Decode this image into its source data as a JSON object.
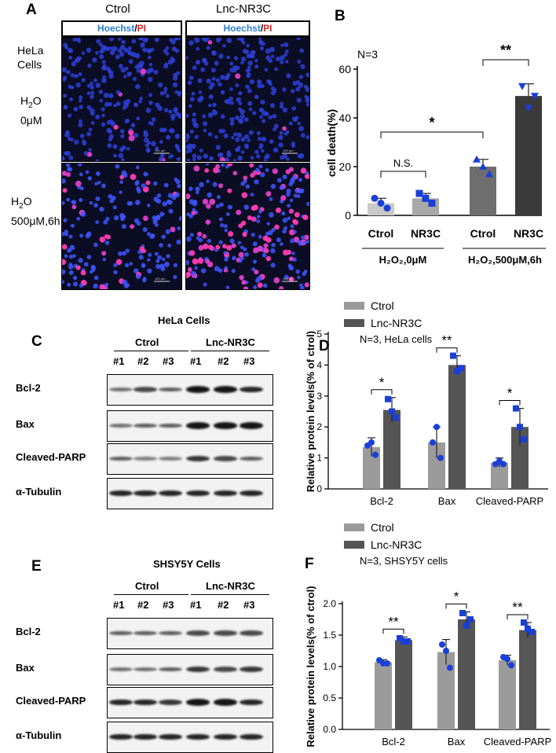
{
  "panelA": {
    "letter": "A",
    "col_ctrl": "Ctrol",
    "col_lnc": "Lnc-NR3C",
    "stain_hoechst": "Hoechst",
    "stain_sep": "/",
    "stain_pi": "PI",
    "row1_cells": "HeLa\nCells",
    "row1_h2o2": "H",
    "row1_sub": "2",
    "row1_o": "O",
    "row1_dose": "0μM",
    "row2_h2o2": "H",
    "row2_sub": "2",
    "row2_o": "O",
    "row2_dose": "500μM,6h",
    "scalebar": "100 μm"
  },
  "panelB": {
    "letter": "B",
    "n_label": "N=3",
    "ylabel": "cell death(%)",
    "yticks": [
      "0",
      "20",
      "40",
      "60"
    ],
    "xcats": [
      "Ctrol",
      "NR3C",
      "Ctrol",
      "NR3C"
    ],
    "group1": "H₂O₂,0μM",
    "group2": "H₂O₂,500μM,6h",
    "sig_ns": "N.S.",
    "sig_1": "*",
    "sig_2": "**"
  },
  "panelC": {
    "letter": "C",
    "title": "HeLa Cells",
    "ctrl": "Ctrol",
    "lnc": "Lnc-NR3C",
    "lanes": [
      "#1",
      "#2",
      "#3",
      "#1",
      "#2",
      "#3"
    ],
    "rows": [
      "Bcl-2",
      "Bax",
      "Cleaved-PARP",
      "α-Tubulin"
    ]
  },
  "panelD": {
    "letter": "D",
    "legend_ctrl": "Ctrol",
    "legend_lnc": "Lnc-NR3C",
    "n_label": "N=3, HeLa cells",
    "ylabel": "Relative protein levels(% of ctrol)",
    "yticks": [
      "0",
      "1",
      "2",
      "3",
      "4",
      "5"
    ],
    "cats": [
      "Bcl-2",
      "Bax",
      "Cleaved-PARP"
    ],
    "sig": [
      "*",
      "**",
      "*"
    ]
  },
  "panelE": {
    "letter": "E",
    "title": "SHSY5Y Cells",
    "ctrl": "Ctrol",
    "lnc": "Lnc-NR3C",
    "lanes": [
      "#1",
      "#2",
      "#3",
      "#1",
      "#2",
      "#3"
    ],
    "rows": [
      "Bcl-2",
      "Bax",
      "Cleaved-PARP",
      "α-Tubulin"
    ]
  },
  "panelF": {
    "letter": "F",
    "legend_ctrl": "Ctrol",
    "legend_lnc": "Lnc-NR3C",
    "n_label": "N=3, SHSY5Y cells",
    "ylabel": "Relative protein levels(% of ctrol)",
    "yticks": [
      "0.0",
      "0.5",
      "1.0",
      "1.5",
      "2.0"
    ],
    "cats": [
      "Bcl-2",
      "Bax",
      "Cleaved-PARP"
    ],
    "sig": [
      "**",
      "*",
      "**"
    ]
  },
  "chart_data": [
    {
      "type": "bar",
      "panel": "B",
      "ylabel": "cell death(%)",
      "ylim": [
        0,
        60
      ],
      "categories": [
        "Ctrol",
        "NR3C",
        "Ctrol",
        "NR3C"
      ],
      "values": [
        5,
        7,
        20,
        49
      ],
      "errors": [
        2,
        2,
        3,
        5
      ],
      "points": [
        [
          7,
          3,
          5
        ],
        [
          9,
          5,
          7
        ],
        [
          23,
          17,
          20
        ],
        [
          53,
          49,
          44
        ]
      ],
      "colors": [
        "#c9c9c9",
        "#a8a8a8",
        "#6e6e6e",
        "#3a3a3a"
      ],
      "markers": [
        "circle",
        "square",
        "triangle-up",
        "triangle-down"
      ]
    },
    {
      "type": "bar",
      "panel": "D",
      "ylabel": "Relative protein levels(% of ctrol)",
      "ylim": [
        0,
        5
      ],
      "categories": [
        "Bcl-2",
        "Bax",
        "Cleaved-PARP"
      ],
      "series": [
        {
          "name": "Ctrol",
          "values": [
            1.35,
            1.5,
            0.85
          ],
          "errors": [
            0.3,
            0.5,
            0.15
          ],
          "points": [
            [
              1.4,
              1.1,
              1.5
            ],
            [
              1.5,
              1.0,
              2.0
            ],
            [
              0.8,
              0.8,
              0.9
            ]
          ],
          "color": "#9b9b9b"
        },
        {
          "name": "Lnc-NR3C",
          "values": [
            2.55,
            4.0,
            2.0
          ],
          "errors": [
            0.4,
            0.3,
            0.6
          ],
          "points": [
            [
              2.9,
              2.3,
              2.5
            ],
            [
              4.3,
              3.9,
              3.8
            ],
            [
              2.6,
              1.6,
              2.0
            ]
          ],
          "color": "#555555"
        }
      ]
    },
    {
      "type": "bar",
      "panel": "F",
      "ylabel": "Relative protein levels(% of ctrol)",
      "ylim": [
        0,
        2.0
      ],
      "categories": [
        "Bcl-2",
        "Bax",
        "Cleaved-PARP"
      ],
      "series": [
        {
          "name": "Ctrol",
          "values": [
            1.07,
            1.23,
            1.1
          ],
          "errors": [
            0.04,
            0.2,
            0.08
          ],
          "points": [
            [
              1.1,
              1.05,
              1.05
            ],
            [
              1.35,
              0.98,
              1.25
            ],
            [
              1.15,
              1.02,
              1.12
            ]
          ],
          "color": "#9b9b9b"
        },
        {
          "name": "Lnc-NR3C",
          "values": [
            1.42,
            1.75,
            1.58
          ],
          "errors": [
            0.05,
            0.12,
            0.12
          ],
          "points": [
            [
              1.45,
              1.4,
              1.4
            ],
            [
              1.85,
              1.75,
              1.65
            ],
            [
              1.7,
              1.55,
              1.6
            ]
          ],
          "color": "#555555"
        }
      ]
    }
  ]
}
